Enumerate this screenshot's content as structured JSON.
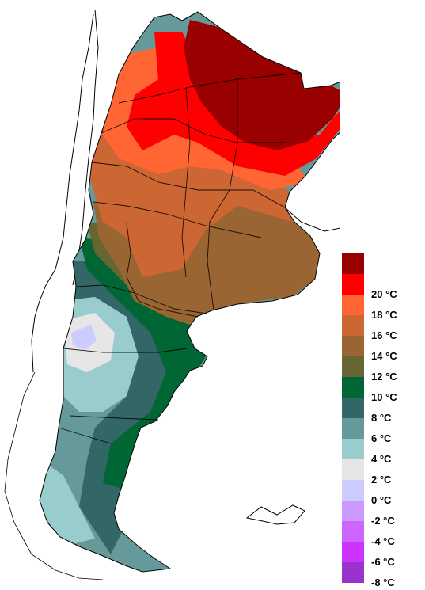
{
  "legend": {
    "items": [
      {
        "label": "",
        "color": "#990000"
      },
      {
        "label": "20 °C",
        "color": "#ff0000"
      },
      {
        "label": "18 °C",
        "color": "#ff6633"
      },
      {
        "label": "16 °C",
        "color": "#cc6633"
      },
      {
        "label": "14 °C",
        "color": "#996633"
      },
      {
        "label": "12 °C",
        "color": "#666633"
      },
      {
        "label": "10 °C",
        "color": "#006633"
      },
      {
        "label": "8 °C",
        "color": "#336666"
      },
      {
        "label": "6 °C",
        "color": "#669999"
      },
      {
        "label": "4 °C",
        "color": "#99cccc"
      },
      {
        "label": "2 °C",
        "color": "#e6e6e6"
      },
      {
        "label": "0 °C",
        "color": "#ccccff"
      },
      {
        "label": "-2 °C",
        "color": "#cc99ff"
      },
      {
        "label": "-4 °C",
        "color": "#cc66ff"
      },
      {
        "label": "-6 °C",
        "color": "#cc33ff"
      },
      {
        "label": "-8 °C",
        "color": "#9933cc"
      }
    ]
  },
  "map": {
    "zone_colors": {
      "z20": "#990000",
      "z18": "#ff0000",
      "z16": "#ff6633",
      "z14": "#cc6633",
      "z12": "#996633",
      "z10": "#666633",
      "z8": "#006633",
      "z6": "#336666",
      "z4": "#669999",
      "z2": "#99cccc",
      "z0": "#e6e6e6",
      "zm2": "#ccccff"
    }
  }
}
